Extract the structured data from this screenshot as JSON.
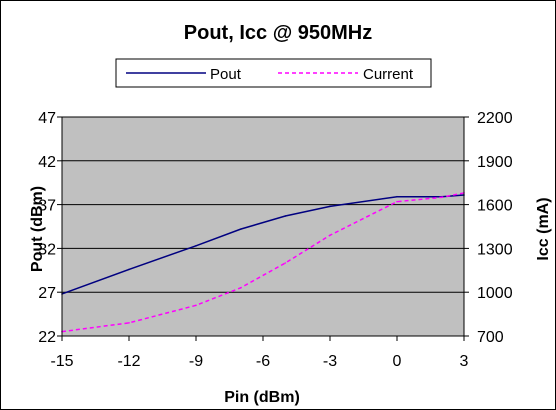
{
  "chart_data": {
    "type": "line",
    "title": "Pout, Icc @ 950MHz",
    "xlabel": "Pin  (dBm)",
    "ylabel_left": "Pout (dBm)",
    "ylabel_right": "Icc (mA)",
    "x": [
      -15,
      -12,
      -9,
      -7,
      -5,
      -3,
      0,
      2,
      3
    ],
    "xlim": [
      -15,
      3
    ],
    "xticks": [
      -15,
      -12,
      -9,
      -6,
      -3,
      0,
      3
    ],
    "ylim_left": [
      22,
      47
    ],
    "yticks_left": [
      22,
      27,
      32,
      37,
      42,
      47
    ],
    "ylim_right": [
      700,
      2200
    ],
    "yticks_right": [
      700,
      1000,
      1300,
      1600,
      1900,
      2200
    ],
    "grid": "horizontal",
    "plot_background": "#c0c0c0",
    "legend": "top",
    "series": [
      {
        "name": "Pout",
        "axis": "left",
        "color": "#000080",
        "style": "solid",
        "values": [
          26.8,
          29.6,
          32.3,
          34.2,
          35.7,
          36.8,
          37.9,
          37.9,
          38.1
        ]
      },
      {
        "name": "Current",
        "axis": "right",
        "color": "#ff00ff",
        "style": "dashed",
        "values": [
          730,
          790,
          910,
          1030,
          1200,
          1390,
          1620,
          1650,
          1680
        ]
      }
    ]
  }
}
